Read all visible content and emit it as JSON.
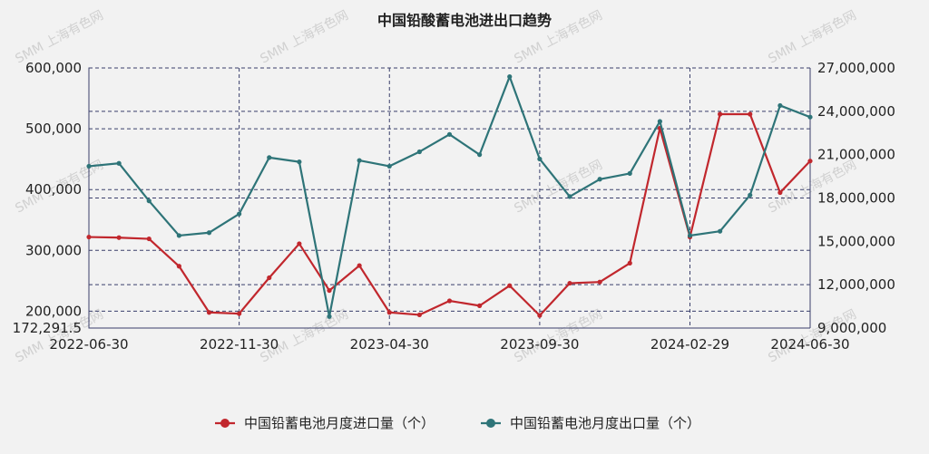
{
  "chart_data": {
    "type": "line",
    "title": "中国铅酸蓄电池进出口趋势",
    "watermark": "SMM 上海有色网",
    "x": [
      "2022-06-30",
      "2022-07-31",
      "2022-08-31",
      "2022-09-30",
      "2022-10-31",
      "2022-11-30",
      "2022-12-31",
      "2023-01-31",
      "2023-02-28",
      "2023-03-31",
      "2023-04-30",
      "2023-05-31",
      "2023-06-30",
      "2023-07-31",
      "2023-08-31",
      "2023-09-30",
      "2023-10-31",
      "2023-11-30",
      "2023-12-31",
      "2024-01-31",
      "2024-02-29",
      "2024-03-31",
      "2024-04-30",
      "2024-05-31",
      "2024-06-30"
    ],
    "x_tick_labels": [
      "2022-06-30",
      "2022-11-30",
      "2023-04-30",
      "2023-09-30",
      "2024-02-29",
      "2024-06-30"
    ],
    "y_left": {
      "ticks": [
        172291.5,
        200000,
        300000,
        400000,
        500000,
        600000
      ],
      "tick_labels": [
        "172,291.5",
        "200,000",
        "300,000",
        "400,000",
        "500,000",
        "600,000"
      ],
      "range": [
        172291.5,
        600000
      ]
    },
    "y_right": {
      "ticks": [
        9000000,
        12000000,
        15000000,
        18000000,
        21000000,
        24000000,
        27000000
      ],
      "tick_labels": [
        "9,000,000",
        "12,000,000",
        "15,000,000",
        "18,000,000",
        "21,000,000",
        "24,000,000",
        "27,000,000"
      ],
      "range": [
        9000000,
        27000000
      ]
    },
    "series": [
      {
        "name": "中国铅蓄电池月度进口量（个）",
        "axis": "left",
        "color": "#c1272d",
        "values": [
          322000,
          321000,
          319000,
          274000,
          198000,
          196000,
          255000,
          311000,
          234000,
          275000,
          198000,
          194000,
          217000,
          209000,
          242000,
          193000,
          246000,
          248000,
          279000,
          501000,
          322000,
          524000,
          524000,
          395000,
          447000
        ]
      },
      {
        "name": "中国铅蓄电池月度出口量（个）",
        "axis": "right",
        "color": "#2e7478",
        "values": [
          20200000,
          20400000,
          17800000,
          15400000,
          15600000,
          16900000,
          20800000,
          20500000,
          9800000,
          20600000,
          20200000,
          21200000,
          22400000,
          21000000,
          26400000,
          20700000,
          18100000,
          19300000,
          19700000,
          23300000,
          15400000,
          15700000,
          18200000,
          24400000,
          23600000
        ]
      }
    ],
    "vgrid_x": [
      "2022-06-30",
      "2022-11-30",
      "2023-04-30",
      "2023-09-30",
      "2024-02-29",
      "2024-06-30"
    ],
    "hgrid_left": [
      172291.5,
      200000,
      300000,
      400000,
      500000,
      600000
    ],
    "hgrid_right": [
      12000000,
      18000000,
      24000000
    ],
    "grid": true,
    "legend_position": "bottom"
  }
}
